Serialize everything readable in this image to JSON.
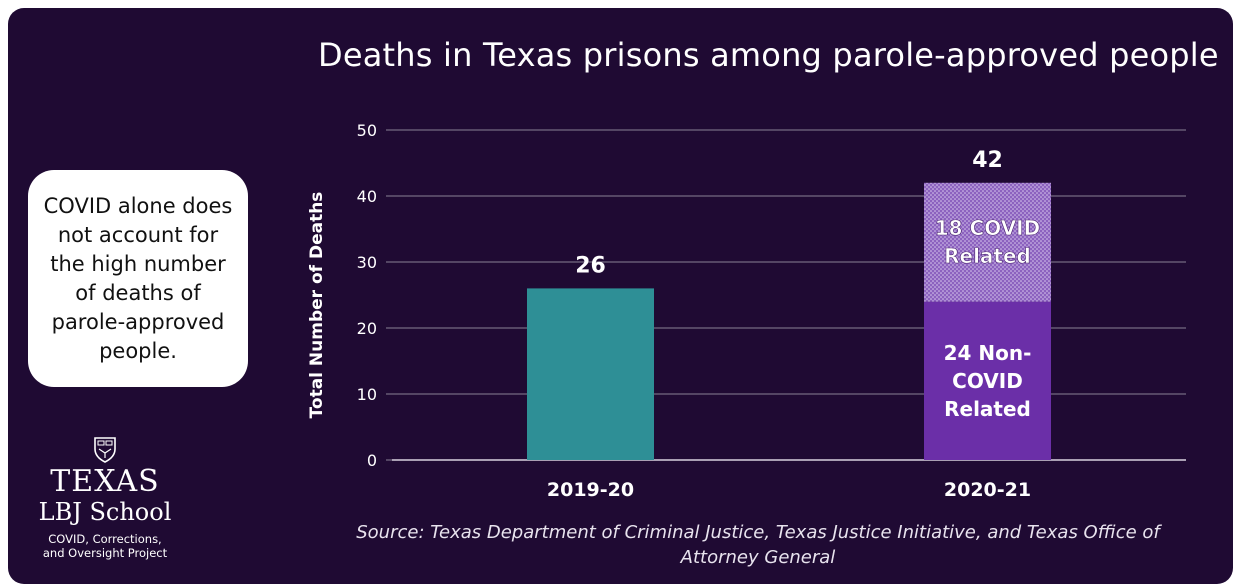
{
  "title": "Deaths in Texas prisons among parole-approved people",
  "callout": "COVID alone does not account for the high number of deaths of parole-approved people.",
  "logo": {
    "name": "TEXAS",
    "school": "LBJ School",
    "project_line1": "COVID, Corrections,",
    "project_line2": "and Oversight Project"
  },
  "source": "Source: Texas Department of Criminal Justice, Texas Justice Initiative, and Texas Office of Attorney General",
  "colors": {
    "background": "#1f0a33",
    "bar_2019": "#2e8f96",
    "bar_noncovid": "#6b2fa8",
    "bar_covid": "#9b73c9",
    "grid": "#8a8294",
    "text": "#ffffff"
  },
  "chart_data": {
    "type": "bar",
    "stacked": true,
    "categories": [
      "2019-20",
      "2020-21"
    ],
    "ylabel": "Total Number of Deaths",
    "ylim": [
      0,
      50
    ],
    "yticks": [
      0,
      10,
      20,
      30,
      40,
      50
    ],
    "grid": true,
    "totals": [
      "26",
      "42"
    ],
    "series": [
      {
        "key": "base",
        "values": [
          26,
          24
        ],
        "labels": [
          "",
          "24 Non-\nCOVID\nRelated"
        ]
      },
      {
        "key": "covid",
        "values": [
          0,
          18
        ],
        "labels": [
          "",
          "18 COVID\nRelated"
        ]
      }
    ]
  }
}
